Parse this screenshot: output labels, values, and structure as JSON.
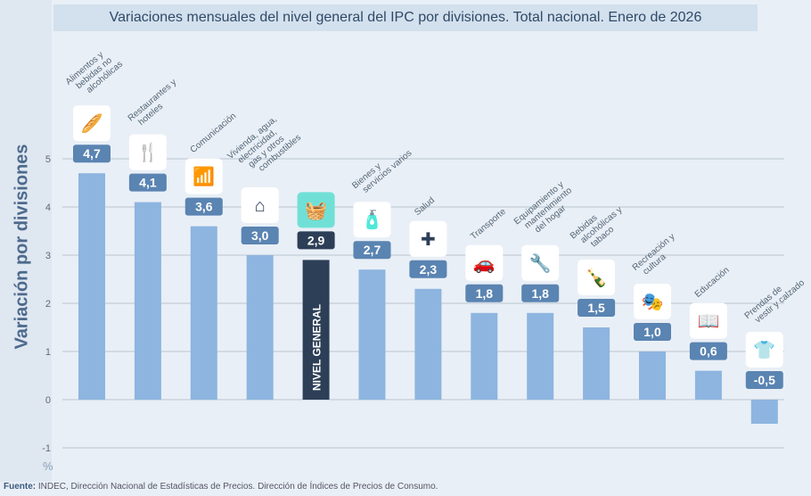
{
  "chart_data": {
    "type": "bar",
    "title": "Variaciones mensuales del nivel general del IPC por divisiones. Total nacional. Enero de 2026",
    "ylabel": "Variación por divisiones",
    "unit": "%",
    "ylim": [
      -1,
      5
    ],
    "yticks": [
      "-1",
      "0",
      "1",
      "2",
      "3",
      "4",
      "5"
    ],
    "grid": true,
    "categories": [
      "Alimentos y bebidas no alcohólicas",
      "Restaurantes y hoteles",
      "Comunicación",
      "Vivienda, agua, electricidad, gas y otros combustibles",
      "NIVEL GENERAL",
      "Bienes y servicios varios",
      "Salud",
      "Transporte",
      "Equipamiento y mantenimiento del hogar",
      "Bebidas alcohólicas y tabaco",
      "Recreación y cultura",
      "Educación",
      "Prendas de vestir y calzado"
    ],
    "values": [
      4.7,
      4.1,
      3.6,
      3.0,
      2.9,
      2.7,
      2.3,
      1.8,
      1.8,
      1.5,
      1.0,
      0.6,
      -0.5
    ],
    "value_labels": [
      "4,7",
      "4,1",
      "3,6",
      "3,0",
      "2,9",
      "2,7",
      "2,3",
      "1,8",
      "1,8",
      "1,5",
      "1,0",
      "0,6",
      "-0,5"
    ],
    "icons": [
      "food-basket-icon",
      "fork-hotel-icon",
      "wifi-icon",
      "house-utilities-icon",
      "shopping-basket-icon",
      "toiletries-icon",
      "health-cross-icon",
      "car-repair-icon",
      "tools-icon",
      "bottle-smoke-icon",
      "theater-masks-icon",
      "book-icon",
      "tshirt-icon"
    ],
    "highlight_index": 4,
    "colors": {
      "bar": "#8db5e0",
      "highlight": "#2d3f57",
      "badge": "#5a84b2",
      "highlight_icon_bg": "#70e0d6"
    }
  },
  "source_label": "Fuente:",
  "source_text": " INDEC, Dirección Nacional de Estadísticas de Precios. Dirección de Índices de Precios de Consumo."
}
